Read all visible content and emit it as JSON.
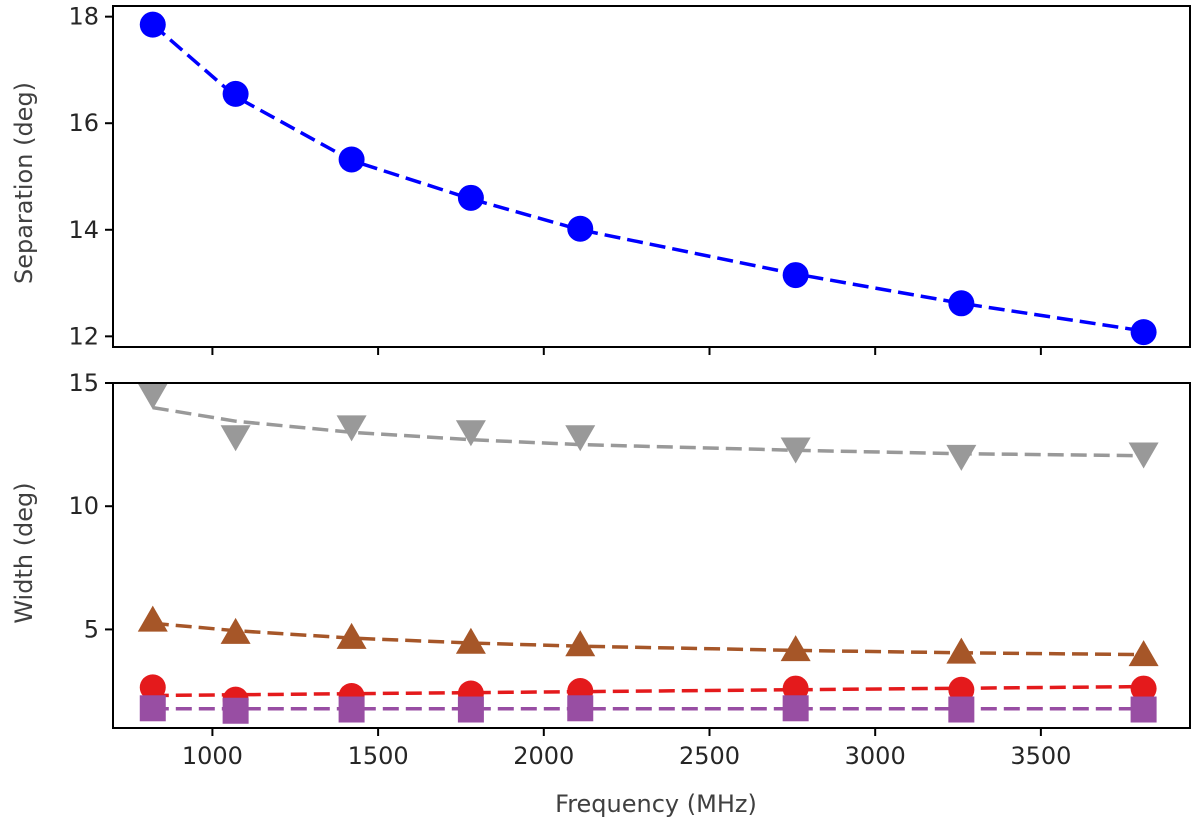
{
  "chart_data": [
    {
      "type": "scatter",
      "panel": "top",
      "ylabel": "Separation (deg)",
      "xlabel": "",
      "xlim": [
        700,
        3950
      ],
      "ylim": [
        11.8,
        18.2
      ],
      "yticks": [
        12,
        14,
        16,
        18
      ],
      "xticks": [
        1000,
        1500,
        2000,
        2500,
        3000,
        3500
      ],
      "show_x_tick_labels": false,
      "series": [
        {
          "name": "separation",
          "color": "#0000ff",
          "marker": "circle",
          "x": [
            820,
            1070,
            1420,
            1780,
            2110,
            2760,
            3260,
            3810
          ],
          "y": [
            17.85,
            16.55,
            15.32,
            14.6,
            14.02,
            13.15,
            12.62,
            12.08
          ],
          "fit": {
            "x": [
              820,
              1070,
              1420,
              1780,
              2110,
              2760,
              3260,
              3810
            ],
            "y": [
              17.85,
              16.5,
              15.3,
              14.58,
              14.0,
              13.17,
              12.62,
              12.1
            ]
          }
        }
      ]
    },
    {
      "type": "scatter",
      "panel": "bottom",
      "ylabel": "Width (deg)",
      "xlabel": "Frequency (MHz)",
      "xlim": [
        700,
        3950
      ],
      "ylim": [
        1.0,
        15.0
      ],
      "yticks": [
        5,
        10,
        15
      ],
      "xticks": [
        1000,
        1500,
        2000,
        2500,
        3000,
        3500
      ],
      "xtick_labels": [
        "1000",
        "1500",
        "2000",
        "2500",
        "3000",
        "3500"
      ],
      "series": [
        {
          "name": "grey",
          "color": "#999999",
          "marker": "triangle-down",
          "x": [
            820,
            1070,
            1420,
            1780,
            2110,
            2760,
            3260,
            3810
          ],
          "y": [
            14.5,
            12.8,
            13.2,
            13.0,
            12.8,
            12.3,
            12.0,
            12.1
          ],
          "fit": {
            "x": [
              820,
              1070,
              1420,
              1780,
              2110,
              2760,
              3260,
              3810
            ],
            "y": [
              14.0,
              13.45,
              13.0,
              12.7,
              12.5,
              12.27,
              12.13,
              12.05
            ]
          }
        },
        {
          "name": "brown",
          "color": "#a65628",
          "marker": "triangle-up",
          "x": [
            820,
            1070,
            1420,
            1780,
            2110,
            2760,
            3260,
            3810
          ],
          "y": [
            5.4,
            4.9,
            4.7,
            4.5,
            4.4,
            4.2,
            4.1,
            4.0
          ],
          "fit": {
            "x": [
              820,
              1070,
              1420,
              1780,
              2110,
              2760,
              3260,
              3810
            ],
            "y": [
              5.25,
              4.95,
              4.65,
              4.45,
              4.32,
              4.15,
              4.05,
              3.98
            ]
          }
        },
        {
          "name": "red",
          "color": "#e41a1c",
          "marker": "circle",
          "x": [
            820,
            1070,
            1420,
            1780,
            2110,
            2760,
            3260,
            3810
          ],
          "y": [
            2.65,
            2.15,
            2.3,
            2.4,
            2.5,
            2.6,
            2.55,
            2.6
          ],
          "fit": {
            "x": [
              820,
              3810
            ],
            "y": [
              2.32,
              2.68
            ]
          }
        },
        {
          "name": "purple",
          "color": "#984ea3",
          "marker": "square",
          "x": [
            820,
            1070,
            1420,
            1780,
            2110,
            2760,
            3260,
            3810
          ],
          "y": [
            1.8,
            1.7,
            1.75,
            1.75,
            1.8,
            1.8,
            1.75,
            1.75
          ],
          "fit": {
            "x": [
              820,
              3810
            ],
            "y": [
              1.78,
              1.78
            ]
          }
        }
      ]
    }
  ]
}
